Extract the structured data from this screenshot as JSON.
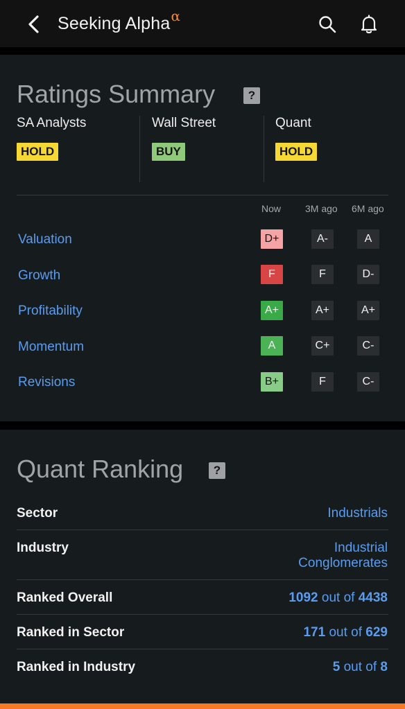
{
  "header": {
    "logo_text": "Seeking Alpha",
    "logo_symbol": "α",
    "icons": {
      "back": "back-chevron-icon",
      "search": "search-icon",
      "bell": "bell-icon"
    }
  },
  "ratings_summary": {
    "title": "Ratings Summary",
    "help_label": "?",
    "sources": [
      {
        "label": "SA Analysts",
        "rating": "HOLD",
        "color": "#f5d833"
      },
      {
        "label": "Wall Street",
        "rating": "BUY",
        "color": "#8fc97a"
      },
      {
        "label": "Quant",
        "rating": "HOLD",
        "color": "#f5d833"
      }
    ],
    "columns": [
      "Now",
      "3M ago",
      "6M ago"
    ],
    "factors": [
      {
        "name": "Valuation",
        "now": "D+",
        "now_color": "#f4a4a4",
        "now_text_color": "#141414",
        "m3": "A-",
        "m6": "A"
      },
      {
        "name": "Growth",
        "now": "F",
        "now_color": "#d84545",
        "now_text_color": "#f2f2f2",
        "m3": "F",
        "m6": "D-"
      },
      {
        "name": "Profitability",
        "now": "A+",
        "now_color": "#3aaa48",
        "now_text_color": "#f2f2f2",
        "m3": "A+",
        "m6": "A+"
      },
      {
        "name": "Momentum",
        "now": "A",
        "now_color": "#4bb356",
        "now_text_color": "#f2f2f2",
        "m3": "C+",
        "m6": "C-"
      },
      {
        "name": "Revisions",
        "now": "B+",
        "now_color": "#88cc88",
        "now_text_color": "#141414",
        "m3": "F",
        "m6": "C-"
      }
    ]
  },
  "quant_ranking": {
    "title": "Quant Ranking",
    "help_label": "?",
    "sector_label": "Sector",
    "sector_value": "Industrials",
    "industry_label": "Industry",
    "industry_value_line1": "Industrial",
    "industry_value_line2": "Conglomerates",
    "ranked_overall_label": "Ranked Overall",
    "ranked_overall_rank": "1092",
    "ranked_overall_total": "4438",
    "ranked_sector_label": "Ranked in Sector",
    "ranked_sector_rank": "171",
    "ranked_sector_total": "629",
    "ranked_industry_label": "Ranked in Industry",
    "ranked_industry_rank": "5",
    "ranked_industry_total": "8",
    "out_of_text": "out of"
  },
  "colors": {
    "accent_blue": "#5a9cf0",
    "brand_orange": "#f57a22"
  }
}
